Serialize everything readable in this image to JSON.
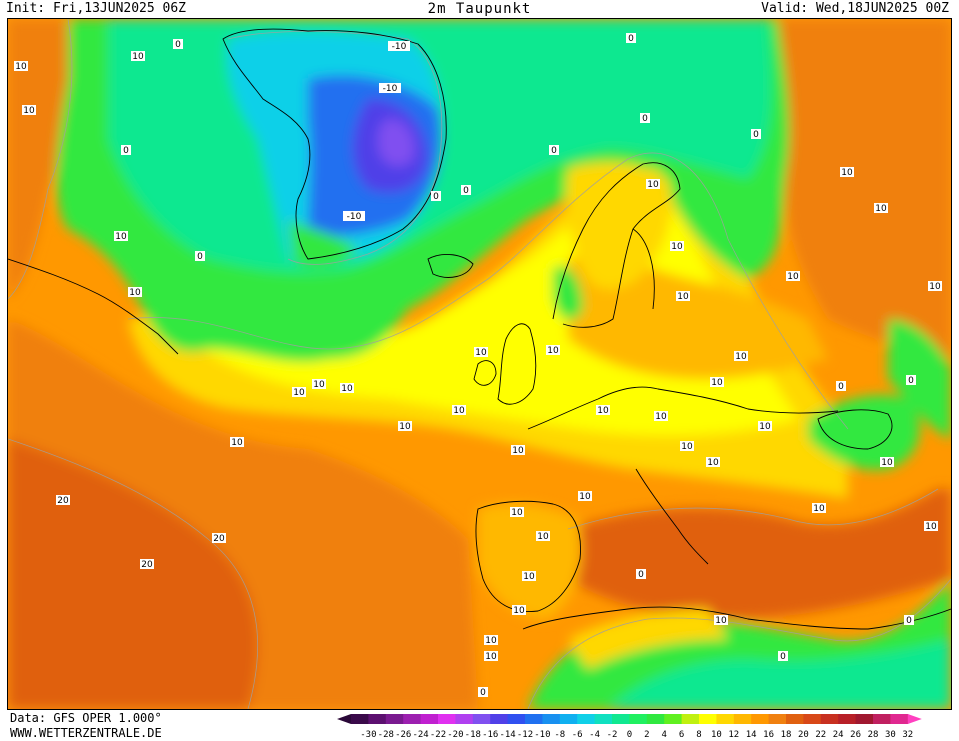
{
  "header": {
    "init": "Init: Fri,13JUN2025 06Z",
    "title": "2m Taupunkt",
    "valid": "Valid: Wed,18JUN2025 00Z"
  },
  "footer": {
    "data_source": "Data: GFS OPER 1.000°",
    "website": "WWW.WETTERZENTRALE.DE"
  },
  "legend": {
    "tick_labels": [
      "-30",
      "-28",
      "-26",
      "-24",
      "-22",
      "-20",
      "-18",
      "-16",
      "-14",
      "-12",
      "-10",
      "-8",
      "-6",
      "-4",
      "-2",
      "0",
      "2",
      "4",
      "6",
      "8",
      "10",
      "12",
      "14",
      "16",
      "18",
      "20",
      "22",
      "24",
      "26",
      "28",
      "30",
      "32"
    ],
    "colors": [
      "#3a0a4a",
      "#5c1070",
      "#7a1a90",
      "#9c20b0",
      "#c020d0",
      "#e030f0",
      "#b040f0",
      "#8050f0",
      "#5040e8",
      "#3050f0",
      "#2070f0",
      "#1890f0",
      "#10b0f0",
      "#10d0e8",
      "#10e0c0",
      "#10e890",
      "#20f060",
      "#30e840",
      "#60f020",
      "#c0f010",
      "#ffff00",
      "#ffd800",
      "#ffb800",
      "#ff9800",
      "#f08010",
      "#e06010",
      "#d84818",
      "#c83020",
      "#b82028",
      "#a01830",
      "#c02060",
      "#e02890"
    ],
    "arrow_left_color": "#2a0838",
    "arrow_right_color": "#ff40c0"
  },
  "map": {
    "contour_labels": [
      "0",
      "10",
      "20",
      "-10"
    ]
  }
}
